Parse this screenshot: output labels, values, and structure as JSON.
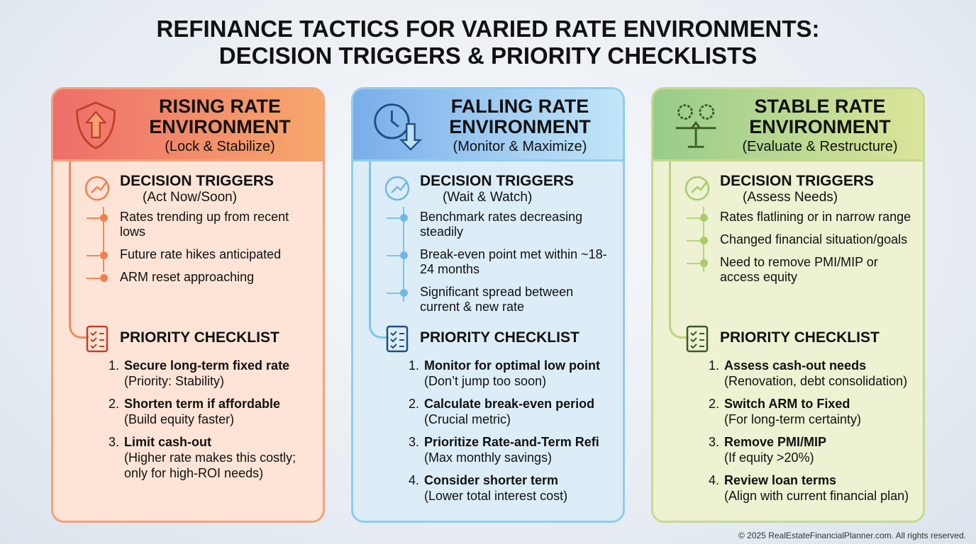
{
  "title_lines": [
    "REFINANCE TACTICS FOR VARIED RATE ENVIRONMENTS:",
    "DECISION TRIGGERS & PRIORITY CHECKLISTS"
  ],
  "columns": [
    {
      "heading_lines": [
        "RISING RATE",
        "ENVIRONMENT"
      ],
      "subtitle": "(Lock & Stabilize)",
      "triggers": {
        "heading": "DECISION TRIGGERS",
        "subtitle": "(Act Now/Soon)",
        "items": [
          "Rates trending up from recent lows",
          "Future rate hikes anticipated",
          "ARM reset approaching"
        ]
      },
      "checklist": {
        "heading": "PRIORITY CHECKLIST",
        "items": [
          {
            "number": "1.",
            "title": "Secure long-term fixed rate",
            "note": "(Priority: Stability)"
          },
          {
            "number": "2.",
            "title": "Shorten term if affordable",
            "note": "(Build equity faster)"
          },
          {
            "number": "3.",
            "title": "Limit cash-out",
            "note": "(Higher rate makes this costly; only for high-ROI needs)"
          }
        ]
      }
    },
    {
      "heading_lines": [
        "FALLING RATE",
        "ENVIRONMENT"
      ],
      "subtitle": "(Monitor & Maximize)",
      "triggers": {
        "heading": "DECISION TRIGGERS",
        "subtitle": "(Wait & Watch)",
        "items": [
          "Benchmark rates decreasing steadily",
          "Break-even point met within ~18-24 months",
          "Significant spread between current & new rate"
        ]
      },
      "checklist": {
        "heading": "PRIORITY CHECKLIST",
        "items": [
          {
            "number": "1.",
            "title": "Monitor for optimal low point",
            "note": "(Don’t jump too soon)"
          },
          {
            "number": "2.",
            "title": "Calculate break-even period",
            "note": "(Crucial metric)"
          },
          {
            "number": "3.",
            "title": "Prioritize Rate-and-Term Refi",
            "note": "(Max monthly savings)"
          },
          {
            "number": "4.",
            "title": "Consider shorter term",
            "note": "(Lower total interest cost)"
          }
        ]
      }
    },
    {
      "heading_lines": [
        "STABLE RATE",
        "ENVIRONMENT"
      ],
      "subtitle": "(Evaluate & Restructure)",
      "triggers": {
        "heading": "DECISION TRIGGERS",
        "subtitle": "(Assess Needs)",
        "items": [
          "Rates flatlining or in narrow range",
          "Changed financial situation/goals",
          "Need to remove PMI/MIP or access equity"
        ]
      },
      "checklist": {
        "heading": "PRIORITY CHECKLIST",
        "items": [
          {
            "number": "1.",
            "title": "Assess cash-out needs",
            "note": "(Renovation, debt consolidation)"
          },
          {
            "number": "2.",
            "title": "Switch ARM to Fixed",
            "note": "(For long-term certainty)"
          },
          {
            "number": "3.",
            "title": "Remove PMI/MIP",
            "note": "(If equity >20%)"
          },
          {
            "number": "4.",
            "title": "Review loan terms",
            "note": "(Align with current financial plan)"
          }
        ]
      }
    }
  ],
  "footer": "© 2025 RealEstateFinancialPlanner.com. All rights reserved."
}
